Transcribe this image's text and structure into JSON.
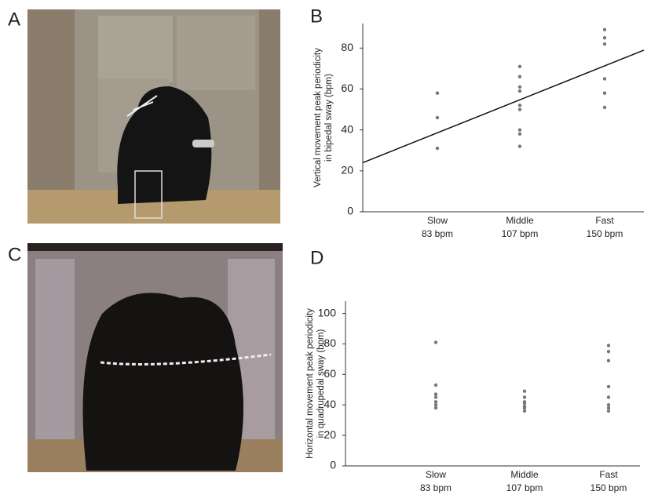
{
  "panel_labels": [
    "A",
    "B",
    "C",
    "D"
  ],
  "chart_data": [
    {
      "type": "scatter",
      "ylabel": [
        "Vertical movement peak periodicity",
        "in  bipedal sway (bpm)"
      ],
      "categories": [
        "Slow",
        "Middle",
        "Fast"
      ],
      "category_sublabels": [
        "83 bpm",
        "107 bpm",
        "150 bpm"
      ],
      "values": [
        [
          58,
          46,
          31
        ],
        [
          71,
          66,
          61,
          59,
          52,
          50,
          40,
          38,
          32
        ],
        [
          89,
          85,
          82,
          65,
          58,
          51
        ]
      ],
      "color": "#777777",
      "trendline": [
        24,
        79
      ],
      "ylim": [
        0,
        92
      ],
      "yticks": [
        0,
        20,
        40,
        60,
        80
      ]
    },
    {
      "type": "scatter",
      "ylabel": [
        "Horizontal movement peak periodicity",
        "in  quadrupedal sway (bpm)"
      ],
      "categories": [
        "Slow",
        "Middle",
        "Fast"
      ],
      "category_sublabels": [
        "83 bpm",
        "107 bpm",
        "150 bpm"
      ],
      "values": [
        [
          81,
          53,
          47,
          45,
          42,
          40,
          38
        ],
        [
          49,
          45,
          42,
          41,
          39,
          38,
          36
        ],
        [
          79,
          75,
          69,
          52,
          45,
          40,
          38,
          36
        ]
      ],
      "color": "#777777",
      "ylim": [
        0,
        108
      ],
      "yticks": [
        0,
        20,
        40,
        60,
        80,
        100
      ]
    }
  ]
}
